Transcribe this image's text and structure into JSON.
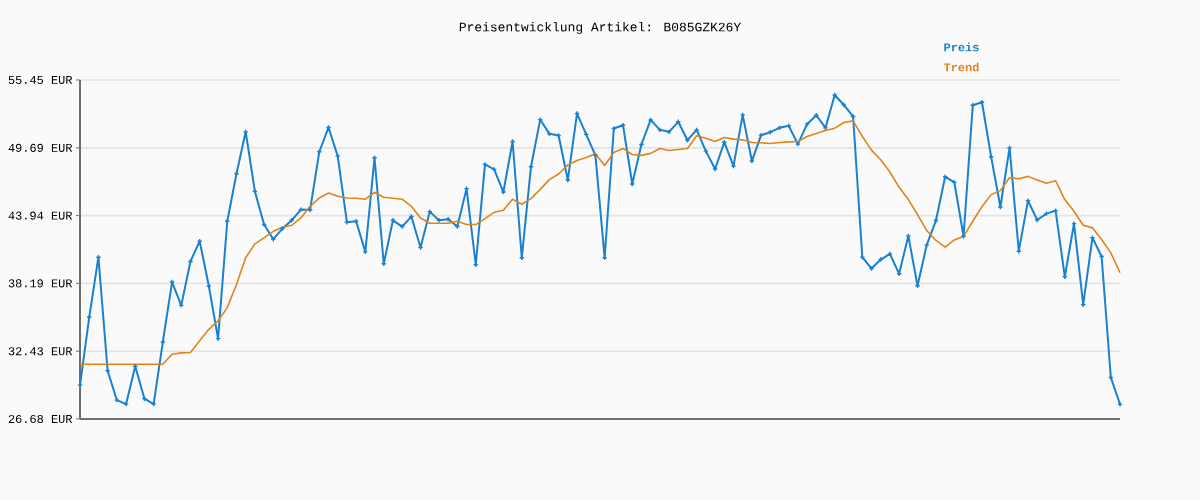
{
  "chart_data": {
    "type": "line",
    "title": "Preisentwicklung Artikel: B085GZK26Y",
    "categories": [
      null,
      null,
      null,
      null,
      null,
      null,
      null,
      null,
      null,
      null,
      null,
      null,
      null,
      null,
      null,
      null,
      null,
      null,
      null,
      null,
      null,
      null,
      null,
      null,
      null,
      null,
      null,
      null,
      null,
      null,
      null,
      null,
      null,
      null,
      null,
      null,
      null,
      null,
      null,
      null,
      null,
      null,
      null,
      null,
      null,
      null,
      null,
      null,
      null,
      null,
      null,
      null,
      null,
      null,
      null,
      null,
      null,
      null,
      null,
      null,
      null,
      null,
      null,
      null,
      null,
      null,
      null,
      null,
      null,
      null,
      null,
      null,
      null,
      null,
      null,
      null,
      null,
      null,
      null,
      null,
      null,
      null,
      null,
      null,
      null,
      null,
      null,
      null,
      null,
      null,
      null,
      null,
      null,
      null,
      null,
      null,
      null,
      null,
      null,
      null,
      null,
      null,
      null,
      null,
      null,
      null,
      null,
      null,
      null,
      null,
      null,
      null,
      null,
      null
    ],
    "series": [
      {
        "name": "Preis",
        "color": "#1a80d0",
        "values": [
          29.55,
          35.31,
          40.41,
          30.77,
          28.28,
          27.94,
          31.16,
          28.4,
          27.94,
          33.22,
          38.3,
          36.32,
          40.05,
          41.77,
          37.96,
          33.5,
          43.46,
          47.49,
          51.05,
          46.0,
          43.18,
          41.94,
          42.84,
          43.54,
          44.45,
          44.42,
          49.36,
          51.42,
          48.99,
          43.38,
          43.46,
          40.86,
          48.85,
          39.85,
          43.54,
          43.01,
          43.86,
          41.23,
          44.28,
          43.54,
          43.63,
          43.01,
          46.23,
          39.77,
          48.29,
          47.86,
          45.94,
          50.23,
          40.36,
          48.09,
          52.09,
          50.88,
          50.74,
          46.96,
          52.6,
          50.83,
          49.05,
          40.36,
          51.33,
          51.61,
          46.62,
          49.98,
          52.06,
          51.22,
          51.05,
          51.9,
          50.34,
          51.22,
          49.41,
          47.89,
          50.17,
          48.14,
          52.49,
          48.57,
          50.77,
          51.02,
          51.39,
          51.56,
          50.01,
          51.7,
          52.46,
          51.39,
          54.18,
          53.33,
          52.35,
          40.41,
          39.45,
          40.21,
          40.69,
          39.0,
          42.22,
          37.99,
          41.46,
          43.52,
          47.24,
          46.76,
          42.19,
          53.31,
          53.56,
          48.93,
          44.67,
          49.69,
          40.92,
          45.21,
          43.57,
          44.11,
          44.36,
          38.75,
          43.26,
          36.38,
          42.07,
          40.47,
          30.2,
          27.92
        ]
      },
      {
        "name": "Trend",
        "color": "#e0841a",
        "marker": "none",
        "values": [
          31.33,
          31.33,
          31.33,
          31.33,
          31.33,
          31.33,
          31.33,
          31.33,
          31.33,
          31.33,
          32.18,
          32.29,
          32.32,
          33.31,
          34.29,
          35.0,
          36.13,
          38.1,
          40.36,
          41.54,
          42.05,
          42.61,
          42.95,
          43.12,
          43.74,
          44.73,
          45.44,
          45.86,
          45.58,
          45.44,
          45.41,
          45.33,
          45.92,
          45.5,
          45.41,
          45.33,
          44.73,
          43.74,
          43.29,
          43.29,
          43.29,
          43.46,
          43.18,
          43.18,
          43.69,
          44.22,
          44.39,
          45.33,
          44.9,
          45.38,
          46.17,
          46.99,
          47.47,
          48.23,
          48.62,
          48.88,
          49.19,
          48.2,
          49.3,
          49.64,
          49.13,
          49.05,
          49.22,
          49.64,
          49.47,
          49.55,
          49.64,
          50.71,
          50.51,
          50.23,
          50.57,
          50.43,
          50.37,
          50.15,
          50.12,
          50.06,
          50.15,
          50.2,
          50.23,
          50.66,
          50.91,
          51.16,
          51.36,
          51.84,
          51.98,
          50.66,
          49.5,
          48.68,
          47.64,
          46.34,
          45.3,
          44.03,
          42.67,
          41.83,
          41.26,
          41.88,
          42.16,
          43.46,
          44.7,
          45.72,
          46.06,
          47.18,
          47.07,
          47.27,
          46.96,
          46.68,
          46.9,
          45.3,
          44.31,
          43.12,
          42.9,
          41.91,
          40.78,
          39.09
        ]
      }
    ],
    "ylim": [
      26.68,
      55.45
    ],
    "yticks": [
      {
        "value": 26.68,
        "label": "26.68 EUR"
      },
      {
        "value": 32.43,
        "label": "32.43 EUR"
      },
      {
        "value": 38.19,
        "label": "38.19 EUR"
      },
      {
        "value": 43.94,
        "label": "43.94 EUR"
      },
      {
        "value": 49.69,
        "label": "49.69 EUR"
      },
      {
        "value": 55.45,
        "label": "55.45 EUR"
      }
    ],
    "grid": "y",
    "legend": "top right",
    "marker": "cross"
  }
}
